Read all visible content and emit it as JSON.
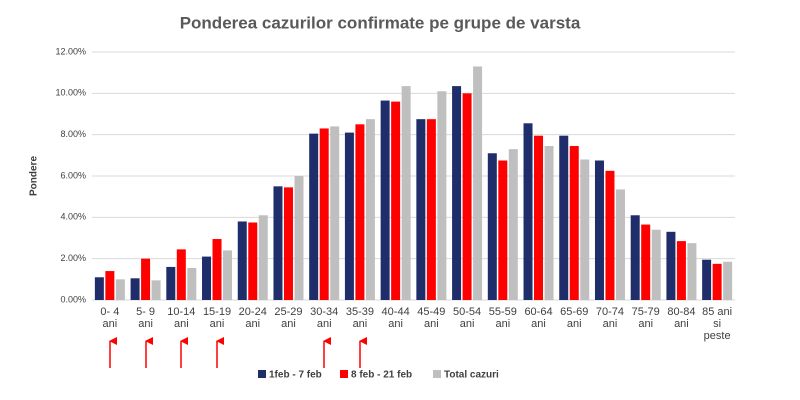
{
  "chart_data": {
    "type": "bar",
    "title": "Ponderea cazurilor confirmate pe grupe de varsta",
    "y_label": "Pondere",
    "categories": [
      "0- 4 ani",
      "5- 9 ani",
      "10-14 ani",
      "15-19 ani",
      "20-24 ani",
      "25-29 ani",
      "30-34 ani",
      "35-39 ani",
      "40-44 ani",
      "45-49 ani",
      "50-54 ani",
      "55-59 ani",
      "60-64 ani",
      "65-69 ani",
      "70-74 ani",
      "75-79 ani",
      "80-84 ani",
      "85 ani si peste"
    ],
    "series": [
      {
        "name": "1feb - 7 feb",
        "color": "#1f2d6b",
        "values": [
          1.1,
          1.05,
          1.6,
          2.1,
          3.8,
          5.5,
          8.05,
          8.1,
          9.65,
          8.75,
          10.35,
          7.1,
          8.55,
          7.95,
          6.75,
          4.1,
          3.3,
          1.95
        ]
      },
      {
        "name": "8 feb - 21 feb",
        "color": "#ff0000",
        "values": [
          1.4,
          2.0,
          2.45,
          2.95,
          3.75,
          5.45,
          8.3,
          8.5,
          9.6,
          8.75,
          10.0,
          6.75,
          7.95,
          7.45,
          6.25,
          3.65,
          2.85,
          1.75
        ]
      },
      {
        "name": "Total cazuri",
        "color": "#bfbfbf",
        "values": [
          1.0,
          0.95,
          1.55,
          2.4,
          4.1,
          6.0,
          8.4,
          8.75,
          10.35,
          10.1,
          11.3,
          7.3,
          7.45,
          6.8,
          5.35,
          3.4,
          2.75,
          1.85
        ]
      }
    ],
    "ylim": [
      0,
      12
    ],
    "yticks": [
      {
        "value": 0,
        "label": "0.00%"
      },
      {
        "value": 2,
        "label": "2.00%"
      },
      {
        "value": 4,
        "label": "4.00%"
      },
      {
        "value": 6,
        "label": "6.00%"
      },
      {
        "value": 8,
        "label": "8.00%"
      },
      {
        "value": 10,
        "label": "10.00%"
      },
      {
        "value": 12,
        "label": "12.00%"
      }
    ],
    "grid": true,
    "legend": "bottom"
  }
}
